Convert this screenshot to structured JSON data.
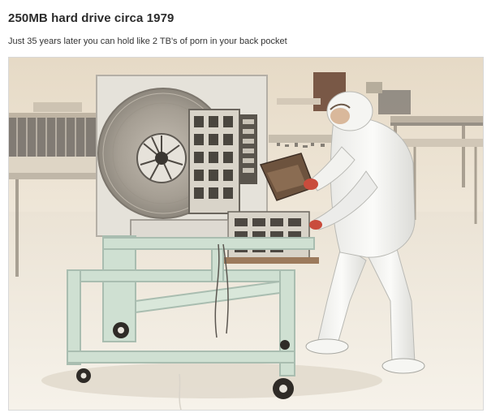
{
  "post": {
    "title": "250MB hard drive circa 1979",
    "subtitle": "Just 35 years later you can hold like 2 TB's of porn in your back pocket"
  },
  "photo": {
    "subject": "technician-with-hard-drive",
    "tones": {
      "wall": "#e9dfcf",
      "floor": "#f2ece1",
      "cart_frame": "#cfe0d2",
      "platter": "#a9a39a",
      "suit": "#f4f4f2",
      "shadow": "#8f8a82"
    }
  }
}
